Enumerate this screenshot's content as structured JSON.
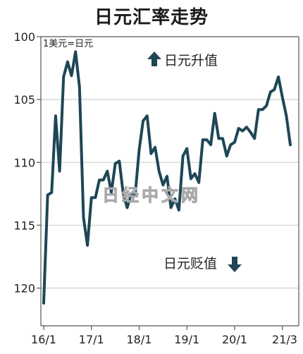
{
  "chart_data": {
    "type": "line",
    "title": "日元汇率走势",
    "unit_label": "1美元=日元",
    "y_axis": {
      "inverted": true,
      "ylim": [
        100,
        123
      ],
      "ticks": [
        100,
        105,
        110,
        115,
        120
      ]
    },
    "x_axis": {
      "range": [
        "2016-01",
        "2021-03"
      ],
      "tick_labels": [
        "16/1",
        "17/1",
        "18/1",
        "19/1",
        "20/1",
        "21/3"
      ]
    },
    "annotations": {
      "up": "日元升值",
      "down": "日元贬值"
    },
    "watermark": "日经中文网",
    "line_color": "#1e4656",
    "series": [
      {
        "values": [
          [
            "2016-01",
            121.2
          ],
          [
            "2016-02",
            112.6
          ],
          [
            "2016-03",
            112.4
          ],
          [
            "2016-04",
            106.3
          ],
          [
            "2016-05",
            110.7
          ],
          [
            "2016-06",
            103.2
          ],
          [
            "2016-07",
            102.0
          ],
          [
            "2016-08",
            103.1
          ],
          [
            "2016-09",
            101.2
          ],
          [
            "2016-10",
            104.0
          ],
          [
            "2016-11",
            114.4
          ],
          [
            "2016-12",
            116.6
          ],
          [
            "2017-01",
            112.8
          ],
          [
            "2017-02",
            112.8
          ],
          [
            "2017-03",
            111.4
          ],
          [
            "2017-04",
            111.4
          ],
          [
            "2017-05",
            110.7
          ],
          [
            "2017-06",
            112.4
          ],
          [
            "2017-07",
            110.1
          ],
          [
            "2017-08",
            109.9
          ],
          [
            "2017-09",
            112.5
          ],
          [
            "2017-10",
            113.6
          ],
          [
            "2017-11",
            112.5
          ],
          [
            "2017-12",
            112.6
          ],
          [
            "2018-01",
            109.0
          ],
          [
            "2018-02",
            106.7
          ],
          [
            "2018-03",
            106.3
          ],
          [
            "2018-04",
            109.3
          ],
          [
            "2018-05",
            108.8
          ],
          [
            "2018-06",
            110.7
          ],
          [
            "2018-07",
            111.8
          ],
          [
            "2018-08",
            111.1
          ],
          [
            "2018-09",
            113.6
          ],
          [
            "2018-10",
            112.9
          ],
          [
            "2018-11",
            113.8
          ],
          [
            "2018-12",
            109.5
          ],
          [
            "2019-01",
            108.9
          ],
          [
            "2019-02",
            111.3
          ],
          [
            "2019-03",
            110.9
          ],
          [
            "2019-04",
            111.6
          ],
          [
            "2019-05",
            108.2
          ],
          [
            "2019-06",
            108.2
          ],
          [
            "2019-07",
            108.6
          ],
          [
            "2019-08",
            106.1
          ],
          [
            "2019-09",
            108.1
          ],
          [
            "2019-10",
            108.1
          ],
          [
            "2019-11",
            109.5
          ],
          [
            "2019-12",
            108.6
          ],
          [
            "2020-01",
            108.4
          ],
          [
            "2020-02",
            107.3
          ],
          [
            "2020-03",
            107.5
          ],
          [
            "2020-04",
            107.2
          ],
          [
            "2020-05",
            107.6
          ],
          [
            "2020-06",
            108.1
          ],
          [
            "2020-07",
            105.8
          ],
          [
            "2020-08",
            105.8
          ],
          [
            "2020-09",
            105.5
          ],
          [
            "2020-10",
            104.4
          ],
          [
            "2020-11",
            104.2
          ],
          [
            "2020-12",
            103.2
          ],
          [
            "2021-01",
            104.8
          ],
          [
            "2021-02",
            106.3
          ],
          [
            "2021-03",
            108.6
          ]
        ]
      }
    ]
  }
}
